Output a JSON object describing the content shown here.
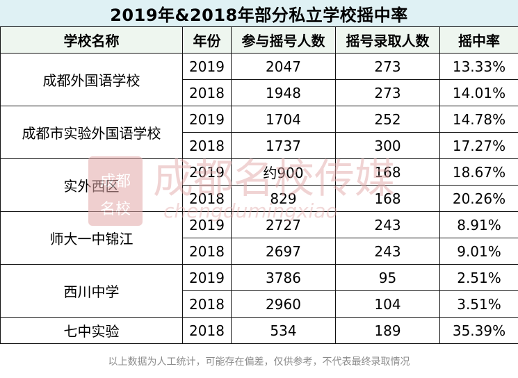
{
  "title": "2019年&2018年部分私立学校摇中率",
  "headers": [
    "学校名称",
    "年份",
    "参与摇号人数",
    "摇号录取人数",
    "摇中率"
  ],
  "schools": [
    {
      "name": "成都外国语学校",
      "rows": [
        {
          "year": "2019",
          "participants": "2047",
          "admitted": "273",
          "rate": "13.33%"
        },
        {
          "year": "2018",
          "participants": "1948",
          "admitted": "273",
          "rate": "14.01%"
        }
      ]
    },
    {
      "name": "成都市实验外国语学校",
      "rows": [
        {
          "year": "2019",
          "participants": "1704",
          "admitted": "252",
          "rate": "14.78%"
        },
        {
          "year": "2018",
          "participants": "1737",
          "admitted": "300",
          "rate": "17.27%"
        }
      ]
    },
    {
      "name": "实外西区",
      "rows": [
        {
          "year": "2019",
          "participants": "约900",
          "admitted": "168",
          "rate": "18.67%"
        },
        {
          "year": "2018",
          "participants": "829",
          "admitted": "168",
          "rate": "20.26%"
        }
      ]
    },
    {
      "name": "师大一中锦江",
      "rows": [
        {
          "year": "2019",
          "participants": "2727",
          "admitted": "243",
          "rate": "8.91%"
        },
        {
          "year": "2018",
          "participants": "2697",
          "admitted": "243",
          "rate": "9.01%"
        }
      ]
    },
    {
      "name": "西川中学",
      "rows": [
        {
          "year": "2019",
          "participants": "3786",
          "admitted": "95",
          "rate": "2.51%"
        },
        {
          "year": "2018",
          "participants": "2960",
          "admitted": "104",
          "rate": "3.51%"
        }
      ]
    },
    {
      "name": "七中实验",
      "rows": [
        {
          "year": "2018",
          "participants": "534",
          "admitted": "189",
          "rate": "35.39%"
        }
      ]
    }
  ],
  "footer": "以上数据为人工统计，可能存在偏差，仅供参考，不代表最终录取情况",
  "watermark": {
    "main": "成都名校传媒",
    "seal_top": "成都",
    "seal_bottom": "名校",
    "url": "chengdumingxiao"
  },
  "colors": {
    "title_bg": "#dff1f4",
    "header_bg": "#eef6ef",
    "watermark": "#e2a9a9",
    "footer_text": "#8c8c8c"
  }
}
